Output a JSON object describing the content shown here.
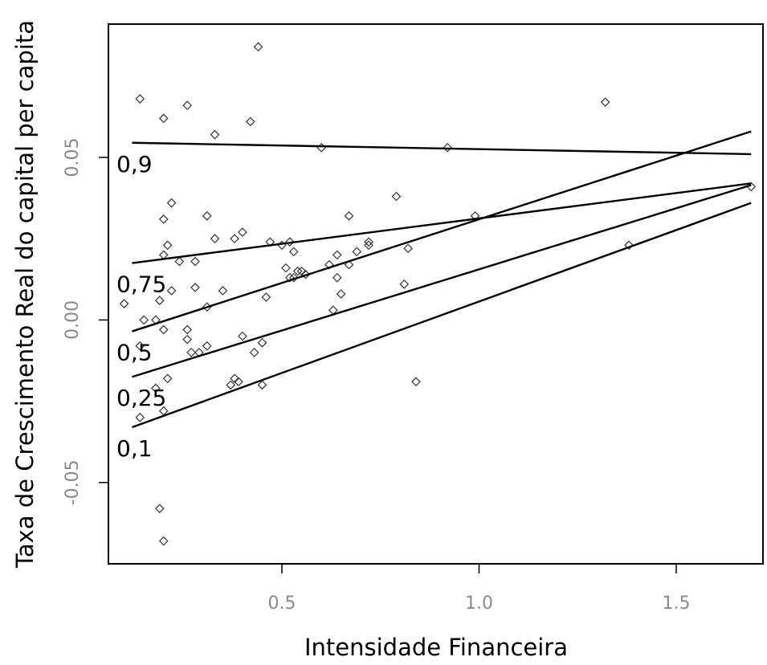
{
  "chart_data": {
    "type": "scatter",
    "title": "",
    "xlabel": "Intensidade Financeira",
    "ylabel": "Taxa de Crescimento Real do capital per capita",
    "xlim": [
      0.06,
      1.72
    ],
    "ylim": [
      -0.075,
      0.091
    ],
    "x_ticks": [
      {
        "value": 0.5,
        "label": "0.5"
      },
      {
        "value": 1.0,
        "label": "1.0"
      },
      {
        "value": 1.5,
        "label": "1.5"
      }
    ],
    "y_ticks": [
      {
        "value": -0.05,
        "label": "-0.05"
      },
      {
        "value": 0.0,
        "label": "0.00"
      },
      {
        "value": 0.05,
        "label": "0.05"
      }
    ],
    "grid": false,
    "marker": "open-diamond",
    "points": [
      {
        "x": 0.14,
        "y": 0.068
      },
      {
        "x": 0.2,
        "y": 0.062
      },
      {
        "x": 0.26,
        "y": 0.066
      },
      {
        "x": 0.33,
        "y": 0.057
      },
      {
        "x": 0.44,
        "y": 0.084
      },
      {
        "x": 0.42,
        "y": 0.061
      },
      {
        "x": 0.6,
        "y": 0.053
      },
      {
        "x": 0.92,
        "y": 0.053
      },
      {
        "x": 1.32,
        "y": 0.067
      },
      {
        "x": 0.79,
        "y": 0.038
      },
      {
        "x": 0.22,
        "y": 0.036
      },
      {
        "x": 0.2,
        "y": 0.031
      },
      {
        "x": 0.31,
        "y": 0.032
      },
      {
        "x": 0.4,
        "y": 0.027
      },
      {
        "x": 0.33,
        "y": 0.025
      },
      {
        "x": 0.38,
        "y": 0.025
      },
      {
        "x": 0.21,
        "y": 0.023
      },
      {
        "x": 0.2,
        "y": 0.02
      },
      {
        "x": 0.24,
        "y": 0.018
      },
      {
        "x": 0.28,
        "y": 0.018
      },
      {
        "x": 0.47,
        "y": 0.024
      },
      {
        "x": 0.5,
        "y": 0.023
      },
      {
        "x": 0.52,
        "y": 0.024
      },
      {
        "x": 0.53,
        "y": 0.021
      },
      {
        "x": 0.51,
        "y": 0.016
      },
      {
        "x": 0.54,
        "y": 0.015
      },
      {
        "x": 0.55,
        "y": 0.015
      },
      {
        "x": 0.56,
        "y": 0.014
      },
      {
        "x": 0.52,
        "y": 0.013
      },
      {
        "x": 0.53,
        "y": 0.013
      },
      {
        "x": 0.62,
        "y": 0.017
      },
      {
        "x": 0.64,
        "y": 0.02
      },
      {
        "x": 0.67,
        "y": 0.032
      },
      {
        "x": 0.67,
        "y": 0.017
      },
      {
        "x": 0.69,
        "y": 0.021
      },
      {
        "x": 0.72,
        "y": 0.024
      },
      {
        "x": 0.72,
        "y": 0.023
      },
      {
        "x": 0.82,
        "y": 0.022
      },
      {
        "x": 0.64,
        "y": 0.013
      },
      {
        "x": 0.65,
        "y": 0.008
      },
      {
        "x": 0.81,
        "y": 0.011
      },
      {
        "x": 0.63,
        "y": 0.003
      },
      {
        "x": 0.22,
        "y": 0.009
      },
      {
        "x": 0.28,
        "y": 0.01
      },
      {
        "x": 0.35,
        "y": 0.009
      },
      {
        "x": 0.1,
        "y": 0.005
      },
      {
        "x": 0.19,
        "y": 0.006
      },
      {
        "x": 0.31,
        "y": 0.004
      },
      {
        "x": 0.46,
        "y": 0.007
      },
      {
        "x": 0.15,
        "y": 0.0
      },
      {
        "x": 0.18,
        "y": 0.0
      },
      {
        "x": 0.2,
        "y": -0.003
      },
      {
        "x": 0.26,
        "y": -0.003
      },
      {
        "x": 0.26,
        "y": -0.006
      },
      {
        "x": 0.31,
        "y": -0.008
      },
      {
        "x": 0.4,
        "y": -0.005
      },
      {
        "x": 0.14,
        "y": -0.008
      },
      {
        "x": 0.27,
        "y": -0.01
      },
      {
        "x": 0.29,
        "y": -0.01
      },
      {
        "x": 0.45,
        "y": -0.007
      },
      {
        "x": 0.43,
        "y": -0.01
      },
      {
        "x": 0.21,
        "y": -0.018
      },
      {
        "x": 0.38,
        "y": -0.018
      },
      {
        "x": 0.39,
        "y": -0.019
      },
      {
        "x": 0.37,
        "y": -0.02
      },
      {
        "x": 0.18,
        "y": -0.021
      },
      {
        "x": 0.45,
        "y": -0.02
      },
      {
        "x": 0.84,
        "y": -0.019
      },
      {
        "x": 0.2,
        "y": -0.028
      },
      {
        "x": 0.14,
        "y": -0.03
      },
      {
        "x": 1.38,
        "y": 0.023
      },
      {
        "x": 0.99,
        "y": 0.032
      },
      {
        "x": 1.69,
        "y": 0.041
      },
      {
        "x": 0.19,
        "y": -0.058
      },
      {
        "x": 0.2,
        "y": -0.068
      }
    ],
    "series": [
      {
        "name": "0,9",
        "x": [
          0.12,
          1.69
        ],
        "y": [
          0.0545,
          0.051
        ]
      },
      {
        "name": "0,75",
        "x": [
          0.12,
          1.69
        ],
        "y": [
          0.0175,
          0.042
        ]
      },
      {
        "name": "0,5",
        "x": [
          0.12,
          1.69
        ],
        "y": [
          -0.0035,
          0.058
        ]
      },
      {
        "name": "0,25",
        "x": [
          0.12,
          1.69
        ],
        "y": [
          -0.0175,
          0.0415
        ]
      },
      {
        "name": "0,1",
        "x": [
          0.12,
          1.69
        ],
        "y": [
          -0.033,
          0.036
        ]
      }
    ]
  }
}
